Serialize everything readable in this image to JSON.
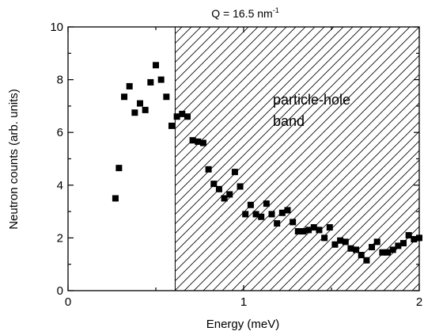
{
  "chart_data": {
    "type": "scatter",
    "title": "Q = 16.5 nm",
    "title_superscript": "-1",
    "xlabel": "Energy  (meV)",
    "ylabel": "Neutron counts (arb. units)",
    "xlim": [
      0,
      2
    ],
    "ylim": [
      0,
      10
    ],
    "x_ticks": [
      0,
      1,
      2
    ],
    "x_tick_labels": [
      "0",
      "1",
      "2"
    ],
    "y_ticks": [
      0,
      2,
      4,
      6,
      8,
      10
    ],
    "y_tick_labels": [
      "0",
      "2",
      "4",
      "6",
      "8",
      "10"
    ],
    "grid": false,
    "shaded_region": {
      "x_start": 0.61,
      "x_end": 2.0,
      "pattern": "diagonal-hatch",
      "label_lines": [
        "particle-hole",
        "band"
      ]
    },
    "marker": "square",
    "marker_color": "#000000",
    "series": [
      {
        "x": [
          0.27,
          0.29,
          0.32,
          0.35,
          0.38,
          0.41,
          0.44,
          0.47,
          0.5,
          0.53,
          0.56,
          0.59,
          0.62,
          0.65,
          0.68,
          0.71,
          0.74,
          0.77,
          0.8,
          0.83,
          0.86,
          0.89,
          0.92,
          0.95,
          0.98,
          1.01,
          1.04,
          1.07,
          1.1,
          1.13,
          1.16,
          1.19,
          1.22,
          1.25,
          1.28,
          1.31,
          1.34,
          1.37,
          1.4,
          1.43,
          1.46,
          1.49,
          1.52,
          1.55,
          1.58,
          1.61,
          1.64,
          1.67,
          1.7,
          1.73,
          1.76,
          1.79,
          1.82,
          1.85,
          1.88,
          1.91,
          1.94,
          1.97,
          2.0
        ],
        "y": [
          3.5,
          4.65,
          7.35,
          7.75,
          6.75,
          7.1,
          6.85,
          7.9,
          8.55,
          8.0,
          7.35,
          6.25,
          6.6,
          6.7,
          6.6,
          5.7,
          5.65,
          5.6,
          4.6,
          4.05,
          3.85,
          3.5,
          3.65,
          4.5,
          3.95,
          2.9,
          3.25,
          2.9,
          2.8,
          3.3,
          2.9,
          2.55,
          2.95,
          3.05,
          2.6,
          2.25,
          2.25,
          2.3,
          2.4,
          2.3,
          2.0,
          2.4,
          1.75,
          1.9,
          1.85,
          1.6,
          1.55,
          1.35,
          1.15,
          1.65,
          1.85,
          1.45,
          1.45,
          1.55,
          1.7,
          1.8,
          2.1,
          1.95,
          2.0
        ]
      }
    ]
  }
}
